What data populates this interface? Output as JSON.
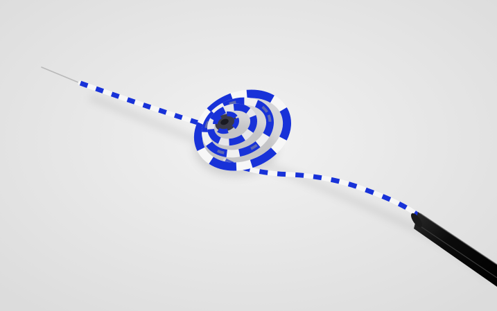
{
  "scene": {
    "subject": "wire-spiral",
    "colors": {
      "background_center": "#f2f2f2",
      "background_edge": "#dcdcdc",
      "stripe_blue": "#1832d8",
      "stripe_white": "#f7f7f7",
      "stripe_shadow": "#8e8e98",
      "sheath_black": "#0b0b0b",
      "lead_wire": "#b9b9b9"
    }
  }
}
